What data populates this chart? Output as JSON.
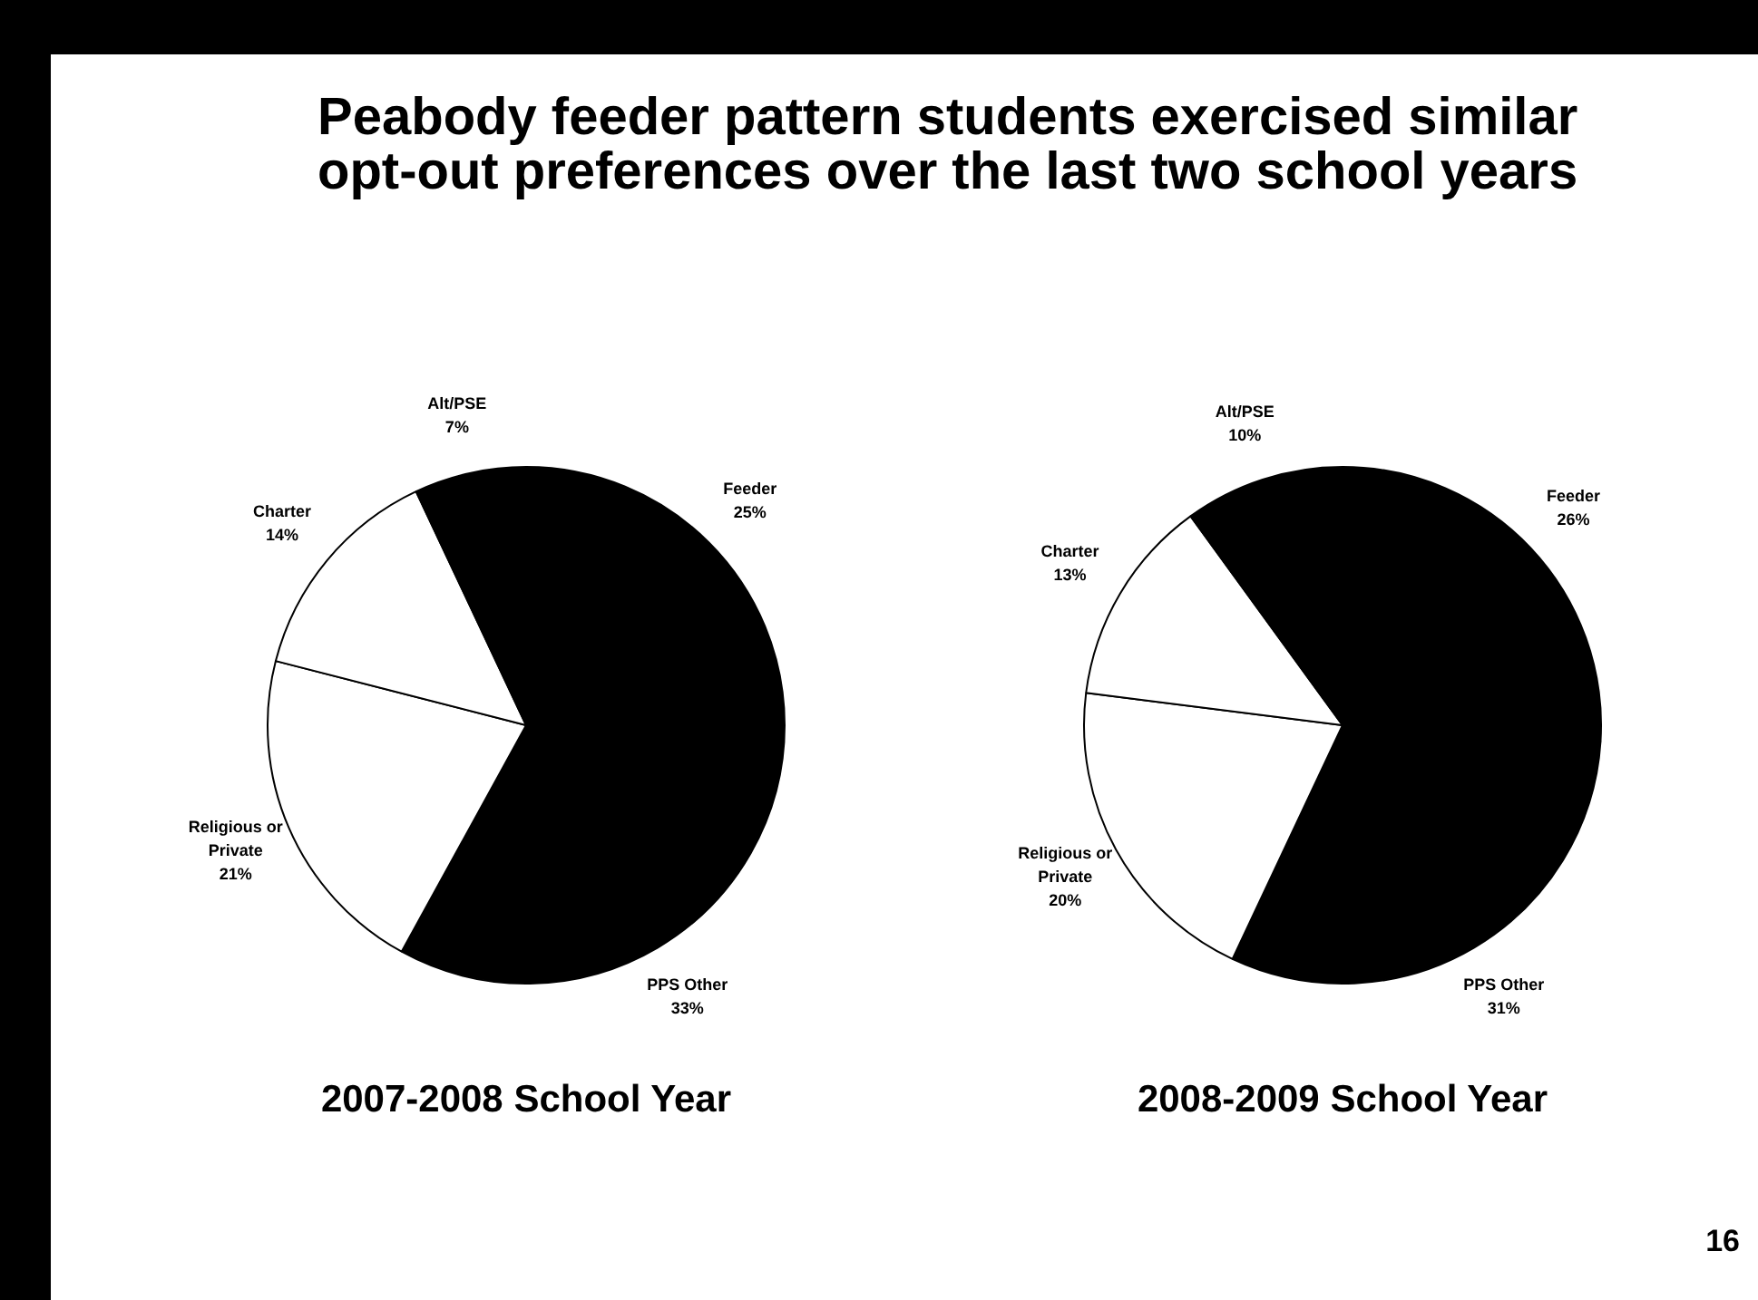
{
  "chart_data": [
    {
      "type": "pie",
      "title": "Peabody feeder pattern students exercised similar opt-out preferences over the last two school years",
      "subtitle": "2007-2008 School Year",
      "categories": [
        "Feeder",
        "PPS Other",
        "Religious or Private",
        "Charter",
        "Alt/PSE"
      ],
      "values": [
        25,
        33,
        21,
        14,
        7
      ],
      "colors": [
        "#000000",
        "#000000",
        "#ffffff",
        "#ffffff",
        "#000000"
      ],
      "value_labels": [
        "25%",
        "33%",
        "21%",
        "14%",
        "7%"
      ]
    },
    {
      "type": "pie",
      "subtitle": "2008-2009 School Year",
      "categories": [
        "Feeder",
        "PPS Other",
        "Religious or Private",
        "Charter",
        "Alt/PSE"
      ],
      "values": [
        26,
        31,
        20,
        13,
        10
      ],
      "colors": [
        "#000000",
        "#000000",
        "#ffffff",
        "#ffffff",
        "#000000"
      ],
      "value_labels": [
        "26%",
        "31%",
        "20%",
        "13%",
        "10%"
      ],
      "annotations": [
        "16"
      ]
    }
  ]
}
